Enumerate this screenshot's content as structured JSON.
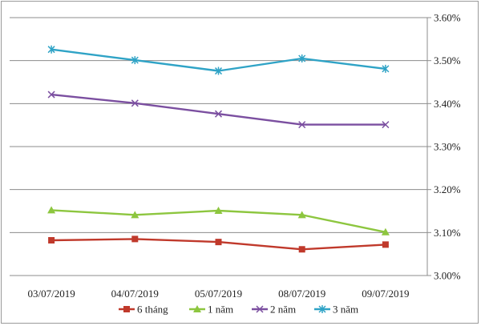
{
  "chart_data": {
    "type": "line",
    "title": "",
    "xlabel": "",
    "ylabel": "",
    "categories": [
      "03/07/2019",
      "04/07/2019",
      "05/07/2019",
      "08/07/2019",
      "09/07/2019"
    ],
    "ylim": [
      3.0,
      3.6
    ],
    "y_ticks": [
      3.0,
      3.1,
      3.2,
      3.3,
      3.4,
      3.5,
      3.6
    ],
    "y_tick_labels": [
      "3.00%",
      "3.10%",
      "3.20%",
      "3.30%",
      "3.40%",
      "3.50%",
      "3.60%"
    ],
    "y_axis_position": "right",
    "grid": true,
    "legend_position": "bottom",
    "series": [
      {
        "name": "6 tháng",
        "color": "#c0392b",
        "marker": "square",
        "values": [
          3.082,
          3.085,
          3.078,
          3.061,
          3.072
        ]
      },
      {
        "name": "1 năm",
        "color": "#8dc63f",
        "marker": "triangle",
        "values": [
          3.152,
          3.141,
          3.151,
          3.141,
          3.101
        ]
      },
      {
        "name": "2 năm",
        "color": "#7b4fa0",
        "marker": "x",
        "values": [
          3.421,
          3.401,
          3.376,
          3.351,
          3.351
        ]
      },
      {
        "name": "3 năm",
        "color": "#2fa3c6",
        "marker": "star",
        "values": [
          3.526,
          3.501,
          3.476,
          3.505,
          3.481
        ]
      }
    ]
  }
}
